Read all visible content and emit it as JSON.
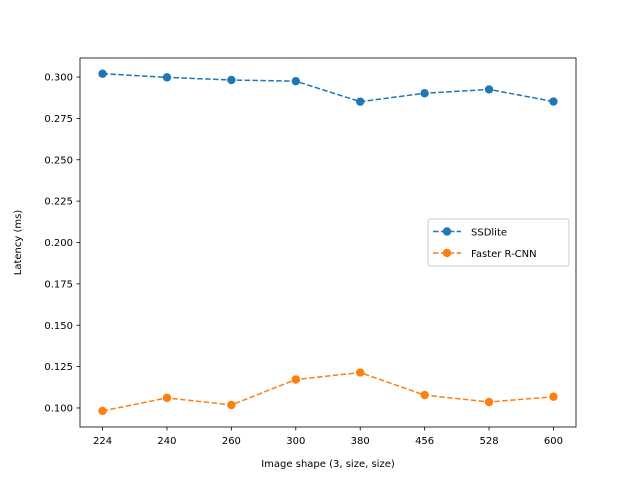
{
  "chart_data": {
    "type": "line",
    "categories": [
      "224",
      "240",
      "260",
      "300",
      "380",
      "456",
      "528",
      "600"
    ],
    "xlabel": "Image shape (3, size, size)",
    "ylabel": "Latency (ms)",
    "ylim": [
      0.0885,
      0.3115
    ],
    "yticks": [
      0.1,
      0.125,
      0.15,
      0.175,
      0.2,
      0.225,
      0.25,
      0.275,
      0.3
    ],
    "ytick_labels": [
      "0.100",
      "0.125",
      "0.150",
      "0.175",
      "0.200",
      "0.225",
      "0.250",
      "0.275",
      "0.300"
    ],
    "grid": false,
    "legend_position": "center-right",
    "series": [
      {
        "name": "SSDlite",
        "color": "#1f77b4",
        "linestyle": "dashed",
        "marker": "circle",
        "values": [
          0.302,
          0.2998,
          0.2982,
          0.2975,
          0.2851,
          0.2902,
          0.2925,
          0.2852
        ]
      },
      {
        "name": "Faster R-CNN",
        "color": "#ff7f0e",
        "linestyle": "dashed",
        "marker": "circle",
        "values": [
          0.0982,
          0.1061,
          0.1018,
          0.1172,
          0.1214,
          0.1078,
          0.1036,
          0.1068
        ]
      }
    ]
  }
}
